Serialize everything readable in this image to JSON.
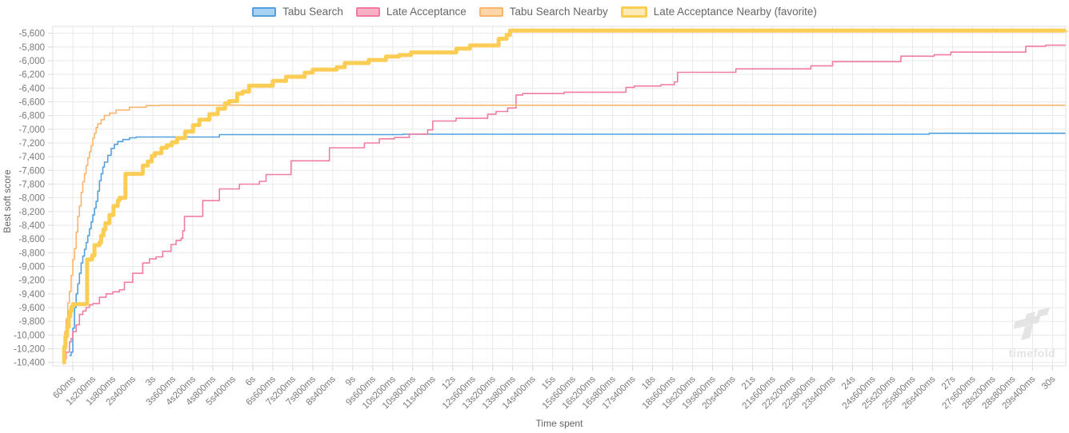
{
  "legend": {
    "items": [
      {
        "label": "Tabu Search",
        "fill": "#a8d2f2",
        "border": "#54a0de",
        "favorite": false
      },
      {
        "label": "Late Acceptance",
        "fill": "#f8b0c6",
        "border": "#f27ca0",
        "favorite": false
      },
      {
        "label": "Tabu Search Nearby",
        "fill": "#fcd6a6",
        "border": "#f9b56c",
        "favorite": false
      },
      {
        "label": "Late Acceptance Nearby (favorite)",
        "fill": "#fdeab4",
        "border": "#fccd55",
        "favorite": true
      }
    ]
  },
  "watermark": {
    "text": "timefold"
  },
  "chart_data": {
    "type": "line",
    "step": true,
    "title": "",
    "xlabel": "Time spent",
    "ylabel": "Best soft score",
    "xlim": [
      0,
      30400
    ],
    "ylim": [
      -10450,
      -5500
    ],
    "grid": true,
    "legend_position": "top",
    "colors": {
      "grid": "#e9e9e9",
      "border": "#e0e0e0",
      "tick": "#d6d6d6",
      "tick_label": "#7a7a7f"
    },
    "x_ticks": [
      {
        "t": 600,
        "label": "600ms"
      },
      {
        "t": 1200,
        "label": "1s200ms"
      },
      {
        "t": 1800,
        "label": "1s800ms"
      },
      {
        "t": 2400,
        "label": "2s400ms"
      },
      {
        "t": 3000,
        "label": "3s"
      },
      {
        "t": 3600,
        "label": "3s600ms"
      },
      {
        "t": 4200,
        "label": "4s200ms"
      },
      {
        "t": 4800,
        "label": "4s800ms"
      },
      {
        "t": 5400,
        "label": "5s400ms"
      },
      {
        "t": 6000,
        "label": "6s"
      },
      {
        "t": 6600,
        "label": "6s600ms"
      },
      {
        "t": 7200,
        "label": "7s200ms"
      },
      {
        "t": 7800,
        "label": "7s800ms"
      },
      {
        "t": 8400,
        "label": "8s400ms"
      },
      {
        "t": 9000,
        "label": "9s"
      },
      {
        "t": 9600,
        "label": "9s600ms"
      },
      {
        "t": 10200,
        "label": "10s200ms"
      },
      {
        "t": 10800,
        "label": "10s800ms"
      },
      {
        "t": 11400,
        "label": "11s400ms"
      },
      {
        "t": 12000,
        "label": "12s"
      },
      {
        "t": 12600,
        "label": "12s600ms"
      },
      {
        "t": 13200,
        "label": "13s200ms"
      },
      {
        "t": 13800,
        "label": "13s800ms"
      },
      {
        "t": 14400,
        "label": "14s400ms"
      },
      {
        "t": 15000,
        "label": "15s"
      },
      {
        "t": 15600,
        "label": "15s600ms"
      },
      {
        "t": 16200,
        "label": "16s200ms"
      },
      {
        "t": 16800,
        "label": "16s800ms"
      },
      {
        "t": 17400,
        "label": "17s400ms"
      },
      {
        "t": 18000,
        "label": "18s"
      },
      {
        "t": 18600,
        "label": "18s600ms"
      },
      {
        "t": 19200,
        "label": "19s200ms"
      },
      {
        "t": 19800,
        "label": "19s800ms"
      },
      {
        "t": 20400,
        "label": "20s400ms"
      },
      {
        "t": 21000,
        "label": "21s"
      },
      {
        "t": 21600,
        "label": "21s600ms"
      },
      {
        "t": 22200,
        "label": "22s200ms"
      },
      {
        "t": 22800,
        "label": "22s800ms"
      },
      {
        "t": 23400,
        "label": "23s400ms"
      },
      {
        "t": 24000,
        "label": "24s"
      },
      {
        "t": 24600,
        "label": "24s600ms"
      },
      {
        "t": 25200,
        "label": "25s200ms"
      },
      {
        "t": 25800,
        "label": "25s800ms"
      },
      {
        "t": 26400,
        "label": "26s400ms"
      },
      {
        "t": 27000,
        "label": "27s"
      },
      {
        "t": 27600,
        "label": "27s600ms"
      },
      {
        "t": 28200,
        "label": "28s200ms"
      },
      {
        "t": 28800,
        "label": "28s800ms"
      },
      {
        "t": 29400,
        "label": "29s400ms"
      },
      {
        "t": 30000,
        "label": "30s"
      }
    ],
    "y_ticks": [
      {
        "v": -5600,
        "label": "-5,600"
      },
      {
        "v": -5800,
        "label": "-5,800"
      },
      {
        "v": -6000,
        "label": "-6,000"
      },
      {
        "v": -6200,
        "label": "-6,200"
      },
      {
        "v": -6400,
        "label": "-6,400"
      },
      {
        "v": -6600,
        "label": "-6,600"
      },
      {
        "v": -6800,
        "label": "-6,800"
      },
      {
        "v": -7000,
        "label": "-7,000"
      },
      {
        "v": -7200,
        "label": "-7,200"
      },
      {
        "v": -7400,
        "label": "-7,400"
      },
      {
        "v": -7600,
        "label": "-7,600"
      },
      {
        "v": -7800,
        "label": "-7,800"
      },
      {
        "v": -8000,
        "label": "-8,000"
      },
      {
        "v": -8200,
        "label": "-8,200"
      },
      {
        "v": -8400,
        "label": "-8,400"
      },
      {
        "v": -8600,
        "label": "-8,600"
      },
      {
        "v": -8800,
        "label": "-8,800"
      },
      {
        "v": -9000,
        "label": "-9,000"
      },
      {
        "v": -9200,
        "label": "-9,200"
      },
      {
        "v": -9400,
        "label": "-9,400"
      },
      {
        "v": -9600,
        "label": "-9,600"
      },
      {
        "v": -9800,
        "label": "-9,800"
      },
      {
        "v": -10000,
        "label": "-10,000"
      },
      {
        "v": -10200,
        "label": "-10,200"
      },
      {
        "v": -10400,
        "label": "-10,400"
      }
    ],
    "series": [
      {
        "name": "Tabu Search",
        "color": "#54a0de",
        "width": 1.6,
        "points": [
          [
            500,
            -10300
          ],
          [
            550,
            -10250
          ],
          [
            600,
            -9900
          ],
          [
            650,
            -9600
          ],
          [
            700,
            -9400
          ],
          [
            750,
            -9250
          ],
          [
            800,
            -9100
          ],
          [
            850,
            -8950
          ],
          [
            900,
            -8850
          ],
          [
            950,
            -8750
          ],
          [
            1000,
            -8650
          ],
          [
            1050,
            -8550
          ],
          [
            1100,
            -8450
          ],
          [
            1150,
            -8350
          ],
          [
            1200,
            -8250
          ],
          [
            1250,
            -8150
          ],
          [
            1300,
            -8050
          ],
          [
            1350,
            -7900
          ],
          [
            1400,
            -7750
          ],
          [
            1450,
            -7650
          ],
          [
            1500,
            -7550
          ],
          [
            1550,
            -7480
          ],
          [
            1650,
            -7380
          ],
          [
            1750,
            -7280
          ],
          [
            1850,
            -7220
          ],
          [
            1950,
            -7180
          ],
          [
            2100,
            -7150
          ],
          [
            2300,
            -7125
          ],
          [
            2500,
            -7113
          ],
          [
            5000,
            -7078
          ],
          [
            10500,
            -7072
          ],
          [
            26300,
            -7058
          ],
          [
            30400,
            -7058
          ]
        ]
      },
      {
        "name": "Late Acceptance",
        "color": "#f27ca0",
        "width": 1.6,
        "points": [
          [
            350,
            -10350
          ],
          [
            400,
            -10250
          ],
          [
            500,
            -10100
          ],
          [
            550,
            -10050
          ],
          [
            600,
            -9950
          ],
          [
            700,
            -9850
          ],
          [
            800,
            -9700
          ],
          [
            900,
            -9650
          ],
          [
            1000,
            -9600
          ],
          [
            1100,
            -9560
          ],
          [
            1200,
            -9540
          ],
          [
            1400,
            -9450
          ],
          [
            1600,
            -9400
          ],
          [
            1800,
            -9370
          ],
          [
            2000,
            -9340
          ],
          [
            2150,
            -9230
          ],
          [
            2400,
            -9100
          ],
          [
            2700,
            -8950
          ],
          [
            2900,
            -8890
          ],
          [
            3100,
            -8860
          ],
          [
            3300,
            -8780
          ],
          [
            3550,
            -8680
          ],
          [
            3700,
            -8620
          ],
          [
            3850,
            -8590
          ],
          [
            3900,
            -8480
          ],
          [
            3950,
            -8270
          ],
          [
            4500,
            -8040
          ],
          [
            5000,
            -7870
          ],
          [
            5600,
            -7800
          ],
          [
            6200,
            -7760
          ],
          [
            6400,
            -7660
          ],
          [
            7150,
            -7460
          ],
          [
            8300,
            -7270
          ],
          [
            9350,
            -7200
          ],
          [
            9800,
            -7140
          ],
          [
            10250,
            -7120
          ],
          [
            10700,
            -7070
          ],
          [
            11250,
            -7010
          ],
          [
            11400,
            -6880
          ],
          [
            12100,
            -6840
          ],
          [
            13050,
            -6780
          ],
          [
            13300,
            -6740
          ],
          [
            13650,
            -6690
          ],
          [
            13900,
            -6500
          ],
          [
            14100,
            -6480
          ],
          [
            15350,
            -6460
          ],
          [
            17200,
            -6390
          ],
          [
            17450,
            -6370
          ],
          [
            18250,
            -6350
          ],
          [
            18650,
            -6310
          ],
          [
            18750,
            -6170
          ],
          [
            20500,
            -6120
          ],
          [
            22750,
            -6075
          ],
          [
            23400,
            -6015
          ],
          [
            25450,
            -5935
          ],
          [
            26450,
            -5915
          ],
          [
            26950,
            -5875
          ],
          [
            29200,
            -5790
          ],
          [
            29800,
            -5775
          ],
          [
            30400,
            -5770
          ]
        ]
      },
      {
        "name": "Tabu Search Nearby",
        "color": "#f9b56c",
        "width": 1.6,
        "points": [
          [
            280,
            -10400
          ],
          [
            320,
            -10150
          ],
          [
            360,
            -9950
          ],
          [
            400,
            -9765
          ],
          [
            450,
            -9530
          ],
          [
            500,
            -9365
          ],
          [
            550,
            -9130
          ],
          [
            600,
            -8900
          ],
          [
            650,
            -8740
          ],
          [
            700,
            -8500
          ],
          [
            750,
            -8270
          ],
          [
            800,
            -8120
          ],
          [
            850,
            -7920
          ],
          [
            900,
            -7765
          ],
          [
            950,
            -7650
          ],
          [
            1000,
            -7530
          ],
          [
            1050,
            -7420
          ],
          [
            1100,
            -7330
          ],
          [
            1150,
            -7235
          ],
          [
            1200,
            -7130
          ],
          [
            1250,
            -7060
          ],
          [
            1300,
            -6975
          ],
          [
            1350,
            -6920
          ],
          [
            1450,
            -6860
          ],
          [
            1550,
            -6800
          ],
          [
            1700,
            -6765
          ],
          [
            1900,
            -6720
          ],
          [
            2300,
            -6680
          ],
          [
            2800,
            -6655
          ],
          [
            3200,
            -6650
          ],
          [
            30400,
            -6650
          ]
        ]
      },
      {
        "name": "Late Acceptance Nearby (favorite)",
        "color": "#fccd55",
        "width": 5,
        "points": [
          [
            300,
            -10400
          ],
          [
            340,
            -10180
          ],
          [
            380,
            -10020
          ],
          [
            430,
            -9880
          ],
          [
            480,
            -9730
          ],
          [
            520,
            -9650
          ],
          [
            560,
            -9590
          ],
          [
            600,
            -9550
          ],
          [
            1000,
            -9545
          ],
          [
            1030,
            -8900
          ],
          [
            1180,
            -8840
          ],
          [
            1250,
            -8690
          ],
          [
            1400,
            -8650
          ],
          [
            1450,
            -8550
          ],
          [
            1520,
            -8460
          ],
          [
            1580,
            -8370
          ],
          [
            1700,
            -8250
          ],
          [
            1820,
            -8120
          ],
          [
            1950,
            -8040
          ],
          [
            2000,
            -8000
          ],
          [
            2180,
            -7650
          ],
          [
            2700,
            -7530
          ],
          [
            2850,
            -7470
          ],
          [
            2970,
            -7390
          ],
          [
            3060,
            -7350
          ],
          [
            3260,
            -7270
          ],
          [
            3420,
            -7235
          ],
          [
            3570,
            -7190
          ],
          [
            3730,
            -7130
          ],
          [
            3970,
            -7035
          ],
          [
            4210,
            -6940
          ],
          [
            4400,
            -6860
          ],
          [
            4700,
            -6780
          ],
          [
            4950,
            -6700
          ],
          [
            5170,
            -6620
          ],
          [
            5290,
            -6590
          ],
          [
            5530,
            -6480
          ],
          [
            5700,
            -6450
          ],
          [
            5890,
            -6365
          ],
          [
            6600,
            -6295
          ],
          [
            7000,
            -6235
          ],
          [
            7560,
            -6175
          ],
          [
            7800,
            -6130
          ],
          [
            8520,
            -6095
          ],
          [
            8760,
            -6035
          ],
          [
            9480,
            -5990
          ],
          [
            10000,
            -5940
          ],
          [
            10400,
            -5918
          ],
          [
            10750,
            -5880
          ],
          [
            12110,
            -5825
          ],
          [
            12520,
            -5778
          ],
          [
            13380,
            -5680
          ],
          [
            13620,
            -5625
          ],
          [
            13720,
            -5560
          ],
          [
            30400,
            -5558
          ]
        ]
      }
    ]
  }
}
